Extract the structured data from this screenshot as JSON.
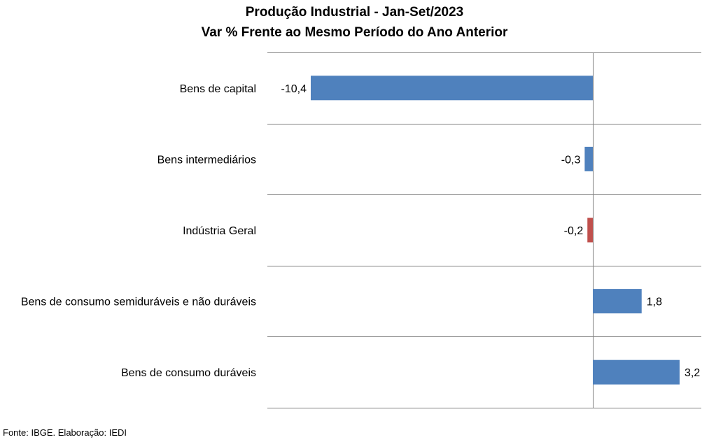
{
  "chart_data": {
    "type": "bar",
    "orientation": "horizontal",
    "title": "Produção Industrial - Jan-Set/2023",
    "subtitle": "Var % Frente ao Mesmo Período do Ano Anterior",
    "categories": [
      "Bens de capital",
      "Bens intermediários",
      "Indústria Geral",
      "Bens de consumo semiduráveis e não duráveis",
      "Bens de consumo duráveis"
    ],
    "values": [
      -10.4,
      -0.3,
      -0.2,
      1.8,
      3.2
    ],
    "value_labels": [
      "-10,4",
      "-0,3",
      "-0,2",
      "1,8",
      "3,2"
    ],
    "colors": [
      "#4F81BD",
      "#4F81BD",
      "#C0504D",
      "#4F81BD",
      "#4F81BD"
    ],
    "xlim": [
      -12,
      4
    ],
    "grid": true
  },
  "footer": {
    "source": "Fonte: IBGE. Elaboração: IEDI"
  }
}
